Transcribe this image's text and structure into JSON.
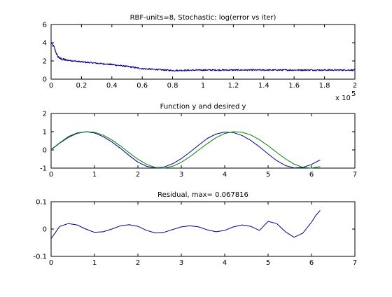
{
  "figure": {
    "background": "#ffffff"
  },
  "chart_data": [
    {
      "type": "line",
      "title": "RBF-units=8, Stochastic: log(error vs iter)",
      "xlabel": "",
      "ylabel": "",
      "xlim": [
        0,
        200000
      ],
      "ylim": [
        0,
        6
      ],
      "xticks": [
        0,
        20000,
        40000,
        60000,
        80000,
        100000,
        120000,
        140000,
        160000,
        180000,
        200000
      ],
      "xtick_labels": [
        "0",
        "0.2",
        "0.4",
        "0.6",
        "0.8",
        "1",
        "1.2",
        "1.4",
        "1.6",
        "1.8",
        "2"
      ],
      "x_exponent_label": "x 10",
      "x_exponent_power": "5",
      "yticks": [
        0,
        2,
        4,
        6
      ],
      "ytick_labels": [
        "0",
        "2",
        "4",
        "6"
      ],
      "grid": false,
      "series": [
        {
          "color": "#00008b",
          "noisy": true,
          "noise_amplitude": 0.08,
          "x": [
            0,
            500,
            2000,
            4000,
            5000,
            6000,
            8000,
            10000,
            15000,
            20000,
            30000,
            40000,
            50000,
            60000,
            70000,
            80000,
            100000,
            120000,
            140000,
            160000,
            180000,
            200000
          ],
          "y": [
            4.0,
            3.9,
            3.5,
            2.6,
            2.4,
            2.25,
            2.15,
            2.1,
            2.0,
            1.9,
            1.75,
            1.6,
            1.4,
            1.15,
            1.05,
            0.95,
            1.0,
            1.0,
            1.0,
            1.0,
            1.0,
            1.0
          ]
        }
      ]
    },
    {
      "type": "line",
      "title": "Function y and desired y",
      "xlabel": "",
      "ylabel": "",
      "xlim": [
        0,
        7
      ],
      "ylim": [
        -1,
        2
      ],
      "xticks": [
        0,
        1,
        2,
        3,
        4,
        5,
        6,
        7
      ],
      "xtick_labels": [
        "0",
        "1",
        "2",
        "3",
        "4",
        "5",
        "6",
        "7"
      ],
      "yticks": [
        -1,
        0,
        1,
        2
      ],
      "ytick_labels": [
        "-1",
        "0",
        "1",
        "2"
      ],
      "grid": false,
      "series": [
        {
          "color": "#00008b",
          "x": [
            0,
            0.2,
            0.4,
            0.6,
            0.8,
            1.0,
            1.2,
            1.4,
            1.6,
            1.8,
            2.0,
            2.2,
            2.4,
            2.6,
            2.8,
            3.0,
            3.2,
            3.4,
            3.6,
            3.8,
            4.0,
            4.2,
            4.4,
            4.6,
            4.8,
            5.0,
            5.2,
            5.4,
            5.6,
            5.8,
            6.0,
            6.2
          ],
          "y": [
            0.02,
            0.39,
            0.73,
            0.93,
            1.0,
            0.93,
            0.73,
            0.44,
            0.08,
            -0.31,
            -0.67,
            -0.9,
            -0.99,
            -0.94,
            -0.76,
            -0.48,
            -0.12,
            0.26,
            0.63,
            0.87,
            0.98,
            0.95,
            0.79,
            0.52,
            0.17,
            -0.22,
            -0.59,
            -0.86,
            -0.99,
            -0.96,
            -0.8,
            -0.55
          ]
        },
        {
          "color": "#008000",
          "x": [
            0,
            0.2,
            0.4,
            0.6,
            0.8,
            1.0,
            1.2,
            1.4,
            1.6,
            1.8,
            2.0,
            2.2,
            2.4,
            2.6,
            2.8,
            3.0,
            3.2,
            3.4,
            3.6,
            3.8,
            4.0,
            4.2,
            4.4,
            4.6,
            4.8,
            5.0,
            5.2,
            5.4,
            5.6,
            5.8,
            6.0,
            6.2
          ],
          "y": [
            0.0,
            0.37,
            0.68,
            0.9,
            1.0,
            0.97,
            0.81,
            0.55,
            0.21,
            -0.16,
            -0.51,
            -0.79,
            -0.96,
            -1.0,
            -0.9,
            -0.68,
            -0.37,
            -0.01,
            0.35,
            0.67,
            0.9,
            1.0,
            0.97,
            0.82,
            0.56,
            0.23,
            -0.14,
            -0.49,
            -0.78,
            -0.96,
            -1.0,
            -0.92
          ]
        }
      ]
    },
    {
      "type": "line",
      "title": "Residual, max= 0.067816",
      "xlabel": "",
      "ylabel": "",
      "xlim": [
        0,
        7
      ],
      "ylim": [
        -0.1,
        0.1
      ],
      "xticks": [
        0,
        1,
        2,
        3,
        4,
        5,
        6,
        7
      ],
      "xtick_labels": [
        "0",
        "1",
        "2",
        "3",
        "4",
        "5",
        "6",
        "7"
      ],
      "yticks": [
        -0.1,
        0,
        0.1
      ],
      "ytick_labels": [
        "-0.1",
        "0",
        "0.1"
      ],
      "grid": false,
      "series": [
        {
          "color": "#00008b",
          "x": [
            0,
            0.2,
            0.4,
            0.6,
            0.8,
            1.0,
            1.2,
            1.4,
            1.6,
            1.8,
            2.0,
            2.2,
            2.4,
            2.6,
            2.8,
            3.0,
            3.2,
            3.4,
            3.6,
            3.8,
            4.0,
            4.2,
            4.4,
            4.6,
            4.8,
            5.0,
            5.2,
            5.4,
            5.6,
            5.8,
            6.0,
            6.1,
            6.2
          ],
          "y": [
            -0.035,
            0.01,
            0.02,
            0.015,
            0.0,
            -0.012,
            -0.01,
            0.0,
            0.012,
            0.016,
            0.01,
            -0.005,
            -0.014,
            -0.012,
            -0.002,
            0.008,
            0.012,
            0.008,
            -0.003,
            -0.01,
            -0.005,
            0.008,
            0.015,
            0.01,
            -0.005,
            0.028,
            0.02,
            -0.01,
            -0.03,
            -0.015,
            0.025,
            0.05,
            0.068
          ]
        }
      ]
    }
  ]
}
